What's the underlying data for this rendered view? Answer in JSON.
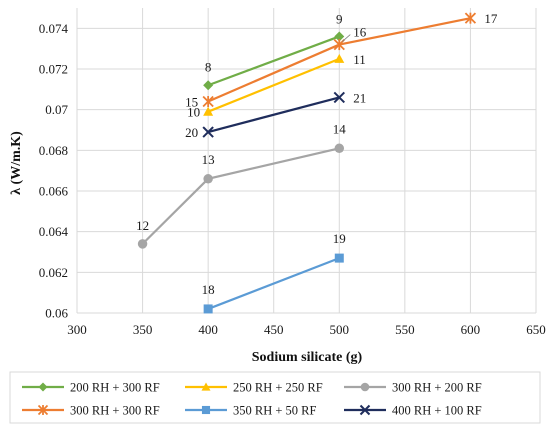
{
  "chart_data": {
    "type": "line",
    "title": "",
    "xlabel": "Sodium silicate (g)",
    "ylabel": "λ (W/m.K)",
    "xlim": [
      300,
      650
    ],
    "ylim": [
      0.06,
      0.075
    ],
    "x_ticks": [
      300,
      350,
      400,
      450,
      500,
      550,
      600,
      650
    ],
    "x_tick_labels": [
      "300",
      "350",
      "400",
      "450",
      "500",
      "550",
      "600",
      "650"
    ],
    "y_ticks": [
      0.06,
      0.062,
      0.064,
      0.066,
      0.068,
      0.07,
      0.072,
      0.074
    ],
    "y_tick_labels": [
      "0.06",
      "0.062",
      "0.064",
      "0.066",
      "0.068",
      "0.07",
      "0.072",
      "0.074"
    ],
    "grid": "vertical and horizontal",
    "legend_position": "bottom",
    "series": [
      {
        "name": "200 RH + 300 RF",
        "color": "#70ad47",
        "marker": "diamond",
        "points": [
          {
            "x": 400,
            "y": 0.0712,
            "label": "8"
          },
          {
            "x": 500,
            "y": 0.0736,
            "label": "9"
          }
        ]
      },
      {
        "name": "250 RH + 250 RF",
        "color": "#ffc000",
        "marker": "triangle",
        "points": [
          {
            "x": 400,
            "y": 0.0699,
            "label": "10"
          },
          {
            "x": 500,
            "y": 0.0725,
            "label": "11"
          }
        ]
      },
      {
        "name": "300 RH + 200 RF",
        "color": "#a5a5a5",
        "marker": "circle",
        "points": [
          {
            "x": 350,
            "y": 0.0634,
            "label": "12"
          },
          {
            "x": 400,
            "y": 0.0666,
            "label": "13"
          },
          {
            "x": 500,
            "y": 0.0681,
            "label": "14"
          }
        ]
      },
      {
        "name": "300 RH + 300 RF",
        "color": "#ed7d31",
        "marker": "star",
        "points": [
          {
            "x": 400,
            "y": 0.0704,
            "label": "15"
          },
          {
            "x": 500,
            "y": 0.0732,
            "label": "16"
          },
          {
            "x": 600,
            "y": 0.0745,
            "label": "17"
          }
        ]
      },
      {
        "name": "350 RH + 50 RF",
        "color": "#5b9bd5",
        "marker": "square",
        "points": [
          {
            "x": 400,
            "y": 0.0602,
            "label": "18"
          },
          {
            "x": 500,
            "y": 0.0627,
            "label": "19"
          }
        ]
      },
      {
        "name": "400 RH + 100 RF",
        "color": "#1f2d5c",
        "marker": "x",
        "points": [
          {
            "x": 400,
            "y": 0.0689,
            "label": "20"
          },
          {
            "x": 500,
            "y": 0.0706,
            "label": "21"
          }
        ]
      }
    ]
  }
}
